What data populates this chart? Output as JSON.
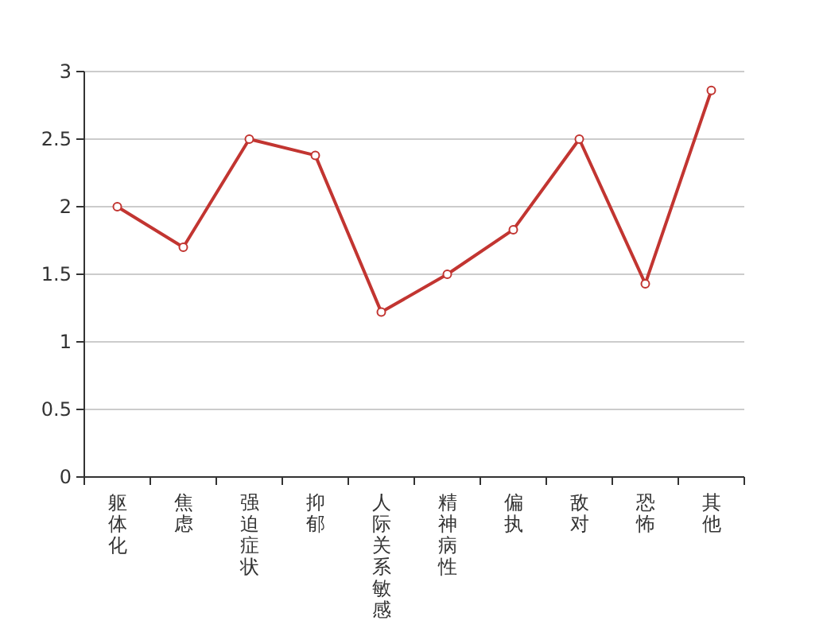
{
  "chart_data": {
    "type": "line",
    "categories": [
      "躯体化",
      "焦虑",
      "强迫症状",
      "抑郁",
      "人际关系敏感",
      "精神病性",
      "偏执",
      "敌对",
      "恐怖",
      "其他"
    ],
    "series": [
      {
        "color": "#c23531",
        "values": [
          2.0,
          1.7,
          2.5,
          2.38,
          1.22,
          1.5,
          1.83,
          2.5,
          1.43,
          2.86
        ]
      }
    ],
    "ylim": [
      0,
      3
    ],
    "yticks": [
      0,
      0.5,
      1,
      1.5,
      2,
      2.5,
      3
    ],
    "grid": "y",
    "marker": "circle"
  }
}
